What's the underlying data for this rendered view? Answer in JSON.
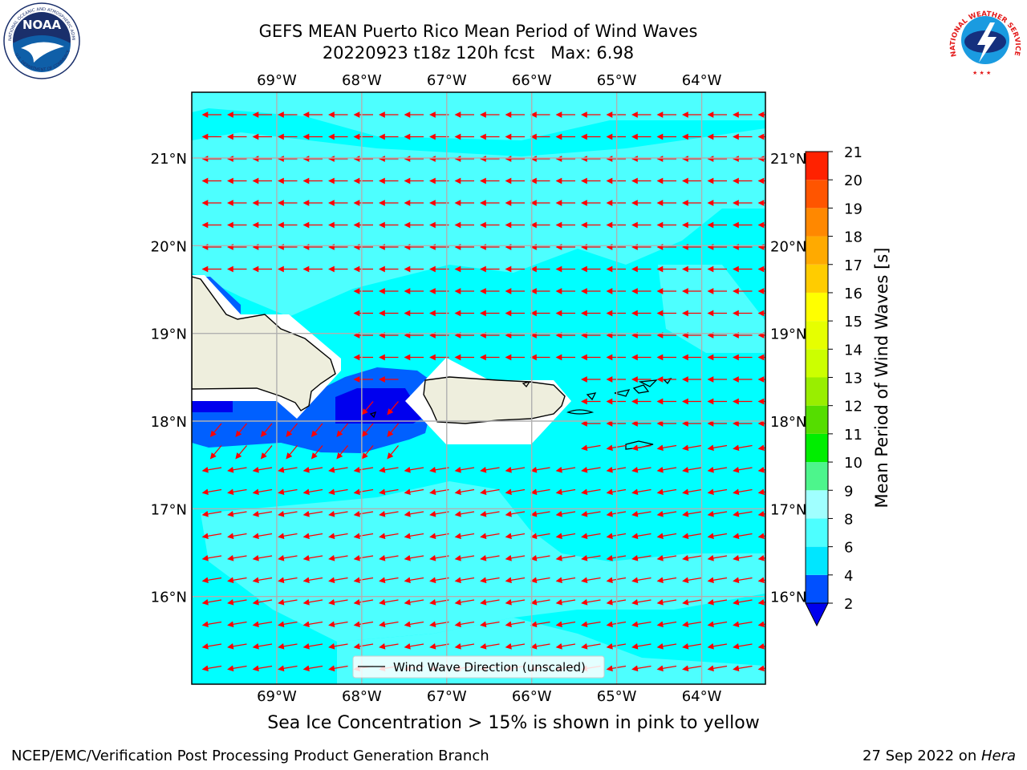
{
  "header": {
    "title_line1": "GEFS MEAN Puerto Rico Mean Period of Wind Waves",
    "title_line2": "20220923 t18z 120h fcst   Max: 6.98"
  },
  "logos": {
    "noaa": {
      "name": "NOAA",
      "ring_text": "NATIONAL OCEANIC AND ATMOSPHERIC ADMINISTRATION",
      "bottom_text": "U.S. DEPARTMENT OF COMMERCE"
    },
    "nws": {
      "ring_text": "NATIONAL WEATHER SERVICE"
    }
  },
  "map": {
    "lon_labels": [
      "69°W",
      "68°W",
      "67°W",
      "66°W",
      "65°W",
      "64°W"
    ],
    "lon_values": [
      -69,
      -68,
      -67,
      -66,
      -65,
      -64
    ],
    "lat_labels": [
      "21°N",
      "20°N",
      "19°N",
      "18°N",
      "17°N",
      "16°N"
    ],
    "lat_values": [
      21,
      20,
      19,
      18,
      17,
      16
    ],
    "lon_range": [
      -70,
      -63.25
    ],
    "lat_range": [
      15,
      21.75
    ],
    "grid": true,
    "arrow_color": "#ff0000",
    "legend_label": "Wind Wave Direction (unscaled)",
    "ocean_color": "#00ffff"
  },
  "colorbar": {
    "label": "Mean Period of Wind Waves [s]",
    "ticks": [
      "2",
      "4",
      "6",
      "8",
      "9",
      "10",
      "11",
      "12",
      "13",
      "14",
      "15",
      "16",
      "17",
      "18",
      "19",
      "20",
      "21"
    ],
    "colors": [
      "#0050ff",
      "#00e6ff",
      "#4dffff",
      "#a0ffff",
      "#4df58c",
      "#00ee00",
      "#55dd00",
      "#99ee00",
      "#ccff00",
      "#e6ff00",
      "#ffff00",
      "#ffcc00",
      "#ffaa00",
      "#ff8800",
      "#ff5500",
      "#ff2200"
    ],
    "under_color": "#0000ee"
  },
  "footer": {
    "note": "Sea Ice Concentration > 15% is shown in pink to yellow",
    "credit_left": "NCEP/EMC/Verification Post Processing Product Generation Branch",
    "credit_date": "27 Sep 2022 on ",
    "credit_machine": "Hera"
  }
}
